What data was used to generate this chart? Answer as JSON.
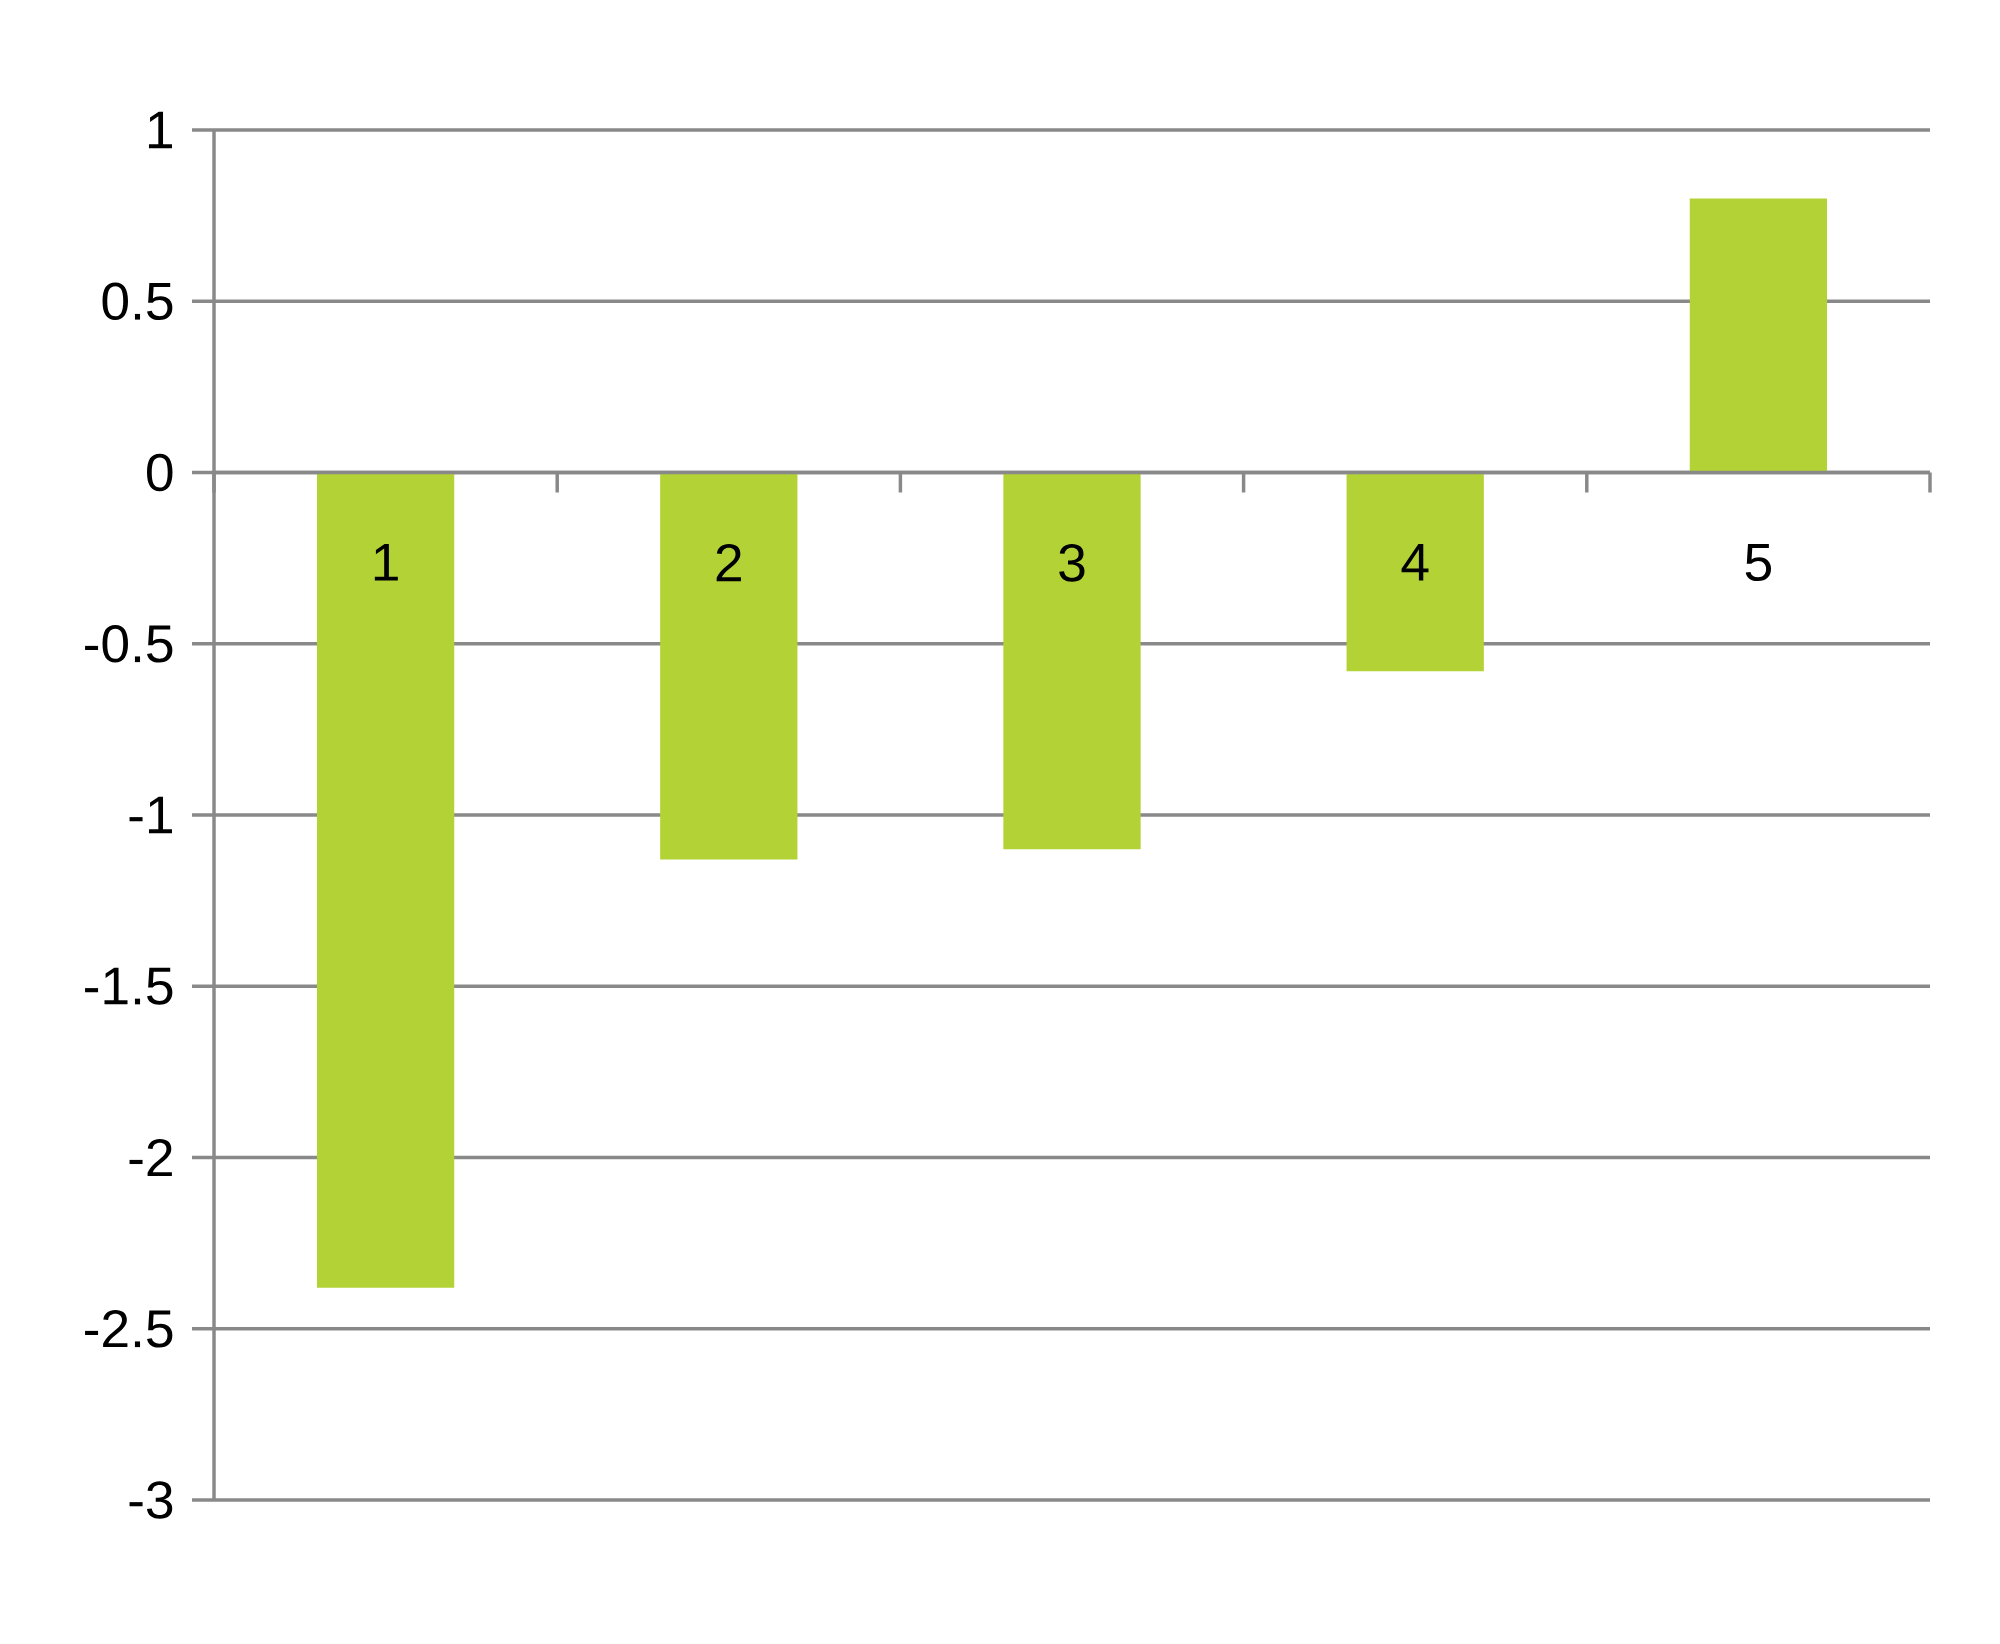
{
  "chart_data": {
    "type": "bar",
    "categories": [
      "1",
      "2",
      "3",
      "4",
      "5"
    ],
    "values": [
      -2.38,
      -1.13,
      -1.1,
      -0.58,
      0.8
    ],
    "color": "#b3d235",
    "ylim": [
      -3,
      1
    ],
    "yticks": [
      -3,
      -2.5,
      -2,
      -1.5,
      -1,
      -0.5,
      0,
      0.5,
      1
    ],
    "grid": "y"
  }
}
